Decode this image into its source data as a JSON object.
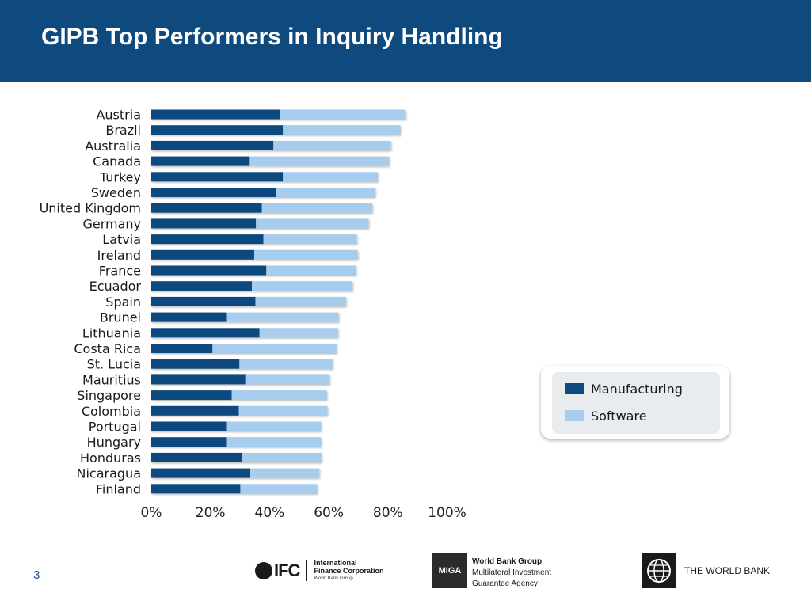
{
  "header": {
    "title": "GIPB Top Performers in Inquiry Handling"
  },
  "colors": {
    "header_bg": "#0f4a7e",
    "manufacturing": "#0f4a7e",
    "software": "#a6cdee"
  },
  "chart_data": {
    "type": "bar",
    "orientation": "horizontal",
    "stacked": true,
    "categories": [
      "Austria",
      "Brazil",
      "Australia",
      "Canada",
      "Turkey",
      "Sweden",
      "United Kingdom",
      "Germany",
      "Latvia",
      "Ireland",
      "France",
      "Ecuador",
      "Spain",
      "Brunei",
      "Lithuania",
      "Costa Rica",
      "St. Lucia",
      "Mauritius",
      "Singapore",
      "Colombia",
      "Portugal",
      "Hungary",
      "Honduras",
      "Nicaragua",
      "Finland"
    ],
    "series": [
      {
        "name": "Manufacturing",
        "values": [
          43.5,
          44.5,
          41.3,
          33.3,
          44.5,
          42.3,
          37.4,
          35.4,
          37.9,
          34.8,
          38.9,
          34.0,
          35.2,
          25.3,
          36.6,
          20.7,
          29.8,
          31.8,
          27.2,
          29.6,
          25.3,
          25.3,
          30.6,
          33.5,
          30.1
        ]
      },
      {
        "name": "Software",
        "values": [
          42.5,
          39.7,
          39.7,
          47.1,
          32.1,
          33.4,
          37.3,
          38.1,
          31.6,
          35.0,
          30.3,
          34.0,
          30.6,
          38.0,
          26.5,
          41.9,
          31.5,
          28.5,
          32.1,
          30.0,
          32.1,
          32.1,
          26.9,
          23.3,
          26.0
        ]
      }
    ],
    "xticks": [
      "0%",
      "20%",
      "40%",
      "60%",
      "80%",
      "100%"
    ],
    "xlim": [
      0,
      100
    ],
    "legend": {
      "position": "right",
      "entries": [
        "Manufacturing",
        "Software"
      ]
    }
  },
  "footer": {
    "page_number": "3",
    "ifc": {
      "mark": "IFC",
      "line1": "International",
      "line2": "Finance Corporation",
      "line3": "World Bank Group"
    },
    "miga": {
      "mark": "MIGA",
      "line1": "World Bank Group",
      "line2": "Multilateral Investment",
      "line3": "Guarantee Agency"
    },
    "world_bank": {
      "label": "THE WORLD BANK"
    }
  }
}
